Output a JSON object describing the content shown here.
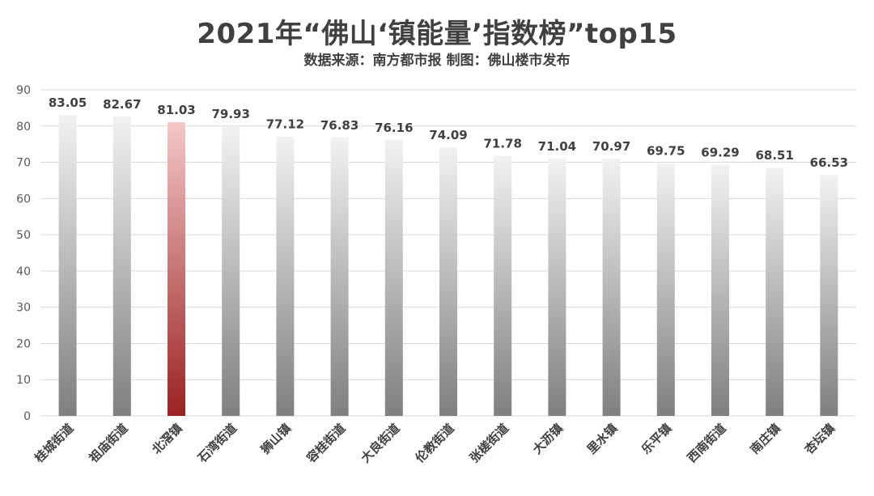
{
  "chart_data": {
    "type": "bar",
    "title": "2021年“佛山‘镇能量’指数榜”top15",
    "subtitle": "数据来源：南方都市报  制图：佛山楼市发布",
    "categories": [
      "桂城街道",
      "祖庙街道",
      "北滘镇",
      "石湾街道",
      "狮山镇",
      "容桂街道",
      "大良街道",
      "伦教街道",
      "张槎街道",
      "大沥镇",
      "里水镇",
      "乐平镇",
      "西南街道",
      "南庄镇",
      "杏坛镇"
    ],
    "values": [
      83.05,
      82.67,
      81.03,
      79.93,
      77.12,
      76.83,
      76.16,
      74.09,
      71.78,
      71.04,
      70.97,
      69.75,
      69.29,
      68.51,
      66.53
    ],
    "data_labels": [
      "83.05",
      "82.67",
      "81.03",
      "79.93",
      "77.12",
      "76.83",
      "76.16",
      "74.09",
      "71.78",
      "71.04",
      "70.97",
      "69.75",
      "69.29",
      "68.51",
      "66.53"
    ],
    "ylim": [
      0,
      90
    ],
    "yticks": [
      "0",
      "10",
      "20",
      "30",
      "40",
      "50",
      "60",
      "70",
      "80",
      "90"
    ],
    "grid": true,
    "legend": "none",
    "highlight_index": 2,
    "colors": {
      "bar_light": "#f2f2f2",
      "bar_dark": "#7f7f7f",
      "highlight_light": "#f4c7c7",
      "highlight_dark": "#9b2222",
      "grid": "#d9d9d9"
    }
  }
}
